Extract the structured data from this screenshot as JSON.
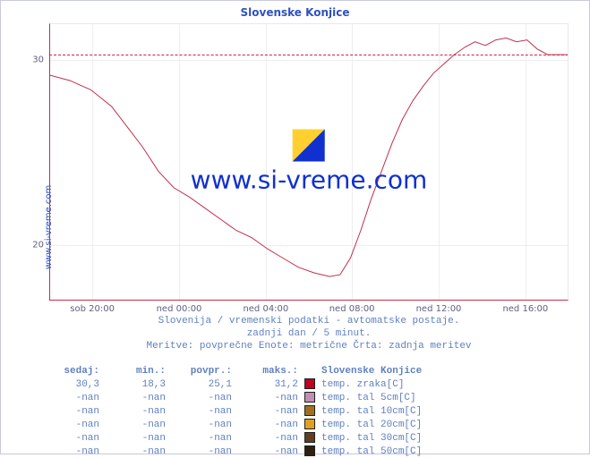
{
  "title": "Slovenske Konjice",
  "ylabel": "www.si-vreme.com",
  "watermark_text": "www.si-vreme.com",
  "subtitle_lines": [
    "Slovenija / vremenski podatki - avtomatske postaje.",
    "zadnji dan / 5 minut.",
    "Meritve: povprečne  Enote: metrične  Črta: zadnja meritev"
  ],
  "colors": {
    "title": "#3050c0",
    "axis": "#c0304c",
    "grid": "#eeeeee",
    "tick_text": "#606080",
    "subtitle": "#6080c0",
    "watermark_blue": "#1030d0",
    "series_line": "#c0304c",
    "last_dashed": "#d02040",
    "border": "#c8c8e0"
  },
  "plot": {
    "ylim": [
      17,
      32
    ],
    "yticks": [
      {
        "v": 20,
        "label": "20"
      },
      {
        "v": 30,
        "label": "30"
      }
    ],
    "xticks": [
      {
        "t": 0.083,
        "label": "sob 20:00"
      },
      {
        "t": 0.25,
        "label": "ned 00:00"
      },
      {
        "t": 0.417,
        "label": "ned 04:00"
      },
      {
        "t": 0.583,
        "label": "ned 08:00"
      },
      {
        "t": 0.75,
        "label": "ned 12:00"
      },
      {
        "t": 0.917,
        "label": "ned 16:00"
      }
    ],
    "last_value": 30.3,
    "series": [
      {
        "t": 0.0,
        "v": 29.2
      },
      {
        "t": 0.04,
        "v": 28.9
      },
      {
        "t": 0.08,
        "v": 28.4
      },
      {
        "t": 0.12,
        "v": 27.5
      },
      {
        "t": 0.15,
        "v": 26.4
      },
      {
        "t": 0.18,
        "v": 25.3
      },
      {
        "t": 0.21,
        "v": 24.0
      },
      {
        "t": 0.24,
        "v": 23.1
      },
      {
        "t": 0.27,
        "v": 22.6
      },
      {
        "t": 0.3,
        "v": 22.0
      },
      {
        "t": 0.33,
        "v": 21.4
      },
      {
        "t": 0.36,
        "v": 20.8
      },
      {
        "t": 0.39,
        "v": 20.4
      },
      {
        "t": 0.42,
        "v": 19.8
      },
      {
        "t": 0.45,
        "v": 19.3
      },
      {
        "t": 0.48,
        "v": 18.8
      },
      {
        "t": 0.51,
        "v": 18.5
      },
      {
        "t": 0.54,
        "v": 18.3
      },
      {
        "t": 0.56,
        "v": 18.4
      },
      {
        "t": 0.58,
        "v": 19.3
      },
      {
        "t": 0.6,
        "v": 20.8
      },
      {
        "t": 0.62,
        "v": 22.5
      },
      {
        "t": 0.64,
        "v": 24.0
      },
      {
        "t": 0.66,
        "v": 25.5
      },
      {
        "t": 0.68,
        "v": 26.8
      },
      {
        "t": 0.7,
        "v": 27.8
      },
      {
        "t": 0.72,
        "v": 28.6
      },
      {
        "t": 0.74,
        "v": 29.3
      },
      {
        "t": 0.76,
        "v": 29.8
      },
      {
        "t": 0.78,
        "v": 30.3
      },
      {
        "t": 0.8,
        "v": 30.7
      },
      {
        "t": 0.82,
        "v": 31.0
      },
      {
        "t": 0.84,
        "v": 30.8
      },
      {
        "t": 0.86,
        "v": 31.1
      },
      {
        "t": 0.88,
        "v": 31.2
      },
      {
        "t": 0.9,
        "v": 31.0
      },
      {
        "t": 0.92,
        "v": 31.1
      },
      {
        "t": 0.94,
        "v": 30.6
      },
      {
        "t": 0.96,
        "v": 30.3
      },
      {
        "t": 0.98,
        "v": 30.3
      },
      {
        "t": 1.0,
        "v": 30.3
      }
    ]
  },
  "table": {
    "headers": {
      "now": "sedaj:",
      "min": "min.:",
      "avg": "povpr.:",
      "max": "maks.:",
      "name": "Slovenske Konjice"
    },
    "rows": [
      {
        "now": "30,3",
        "min": "18,3",
        "avg": "25,1",
        "max": "31,2",
        "swatch": "#c00020",
        "name": "temp. zraka[C]"
      },
      {
        "now": "-nan",
        "min": "-nan",
        "avg": "-nan",
        "max": "-nan",
        "swatch": "#c090b0",
        "name": "temp. tal  5cm[C]"
      },
      {
        "now": "-nan",
        "min": "-nan",
        "avg": "-nan",
        "max": "-nan",
        "swatch": "#a07020",
        "name": "temp. tal 10cm[C]"
      },
      {
        "now": "-nan",
        "min": "-nan",
        "avg": "-nan",
        "max": "-nan",
        "swatch": "#e0a020",
        "name": "temp. tal 20cm[C]"
      },
      {
        "now": "-nan",
        "min": "-nan",
        "avg": "-nan",
        "max": "-nan",
        "swatch": "#604020",
        "name": "temp. tal 30cm[C]"
      },
      {
        "now": "-nan",
        "min": "-nan",
        "avg": "-nan",
        "max": "-nan",
        "swatch": "#302010",
        "name": "temp. tal 50cm[C]"
      }
    ]
  }
}
